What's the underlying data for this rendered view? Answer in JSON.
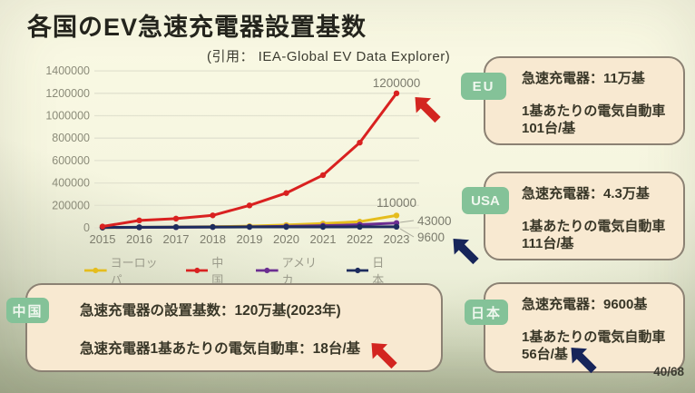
{
  "slide": {
    "title": "各国のEV急速充電器設置基数",
    "citation": "(引用： IEA-Global EV Data Explorer)",
    "page_number": "40/68"
  },
  "chart_data": {
    "type": "line",
    "x": [
      2015,
      2016,
      2017,
      2018,
      2019,
      2020,
      2021,
      2022,
      2023
    ],
    "series": [
      {
        "name": "ヨーロッパ",
        "color": "#e5bd1d",
        "values": [
          2000,
          4500,
          7000,
          10000,
          15000,
          25000,
          38000,
          55000,
          110000
        ],
        "end_label": "110000"
      },
      {
        "name": "中国",
        "color": "#d92120",
        "values": [
          12000,
          66000,
          82000,
          111000,
          200000,
          310000,
          470000,
          760000,
          1200000
        ],
        "end_label": "1200000"
      },
      {
        "name": "アメリカ",
        "color": "#6b2e91",
        "values": [
          3000,
          4500,
          5500,
          7000,
          9000,
          13000,
          19000,
          28000,
          43000
        ],
        "end_label": "43000"
      },
      {
        "name": "日本",
        "color": "#1d2c5e",
        "values": [
          3000,
          5000,
          6500,
          7300,
          7700,
          7900,
          8100,
          8700,
          9600
        ],
        "end_label": "9600"
      }
    ],
    "ylim": [
      0,
      1400000
    ],
    "ytick_step": 200000,
    "grid": true,
    "legend_position": "bottom",
    "title": "",
    "xlabel": "",
    "ylabel": ""
  },
  "info_boxes": {
    "eu": {
      "tag": "EU",
      "line1": "急速充電器：11万基",
      "line2": "1基あたりの電気自動車",
      "line3": "101台/基"
    },
    "usa": {
      "tag": "USA",
      "line1": "急速充電器：4.3万基",
      "line2": "1基あたりの電気自動車",
      "line3": "111台/基"
    },
    "japan": {
      "tag": "日本",
      "line1": "急速充電器：9600基",
      "line2": "1基あたりの電気自動車",
      "line3": "56台/基"
    },
    "china": {
      "tag": "中国",
      "line1": "急速充電器の設置基数：120万基(2023年)",
      "line2": "急速充電器1基あたりの電気自動車：18台/基"
    }
  },
  "colors": {
    "arrow_red": "#d32520",
    "arrow_navy": "#17255a",
    "tag_green": "#84c298",
    "grid_line": "#e2e2cf",
    "axis_text": "#8b8b79",
    "data_label_text": "#7b7b6d"
  }
}
